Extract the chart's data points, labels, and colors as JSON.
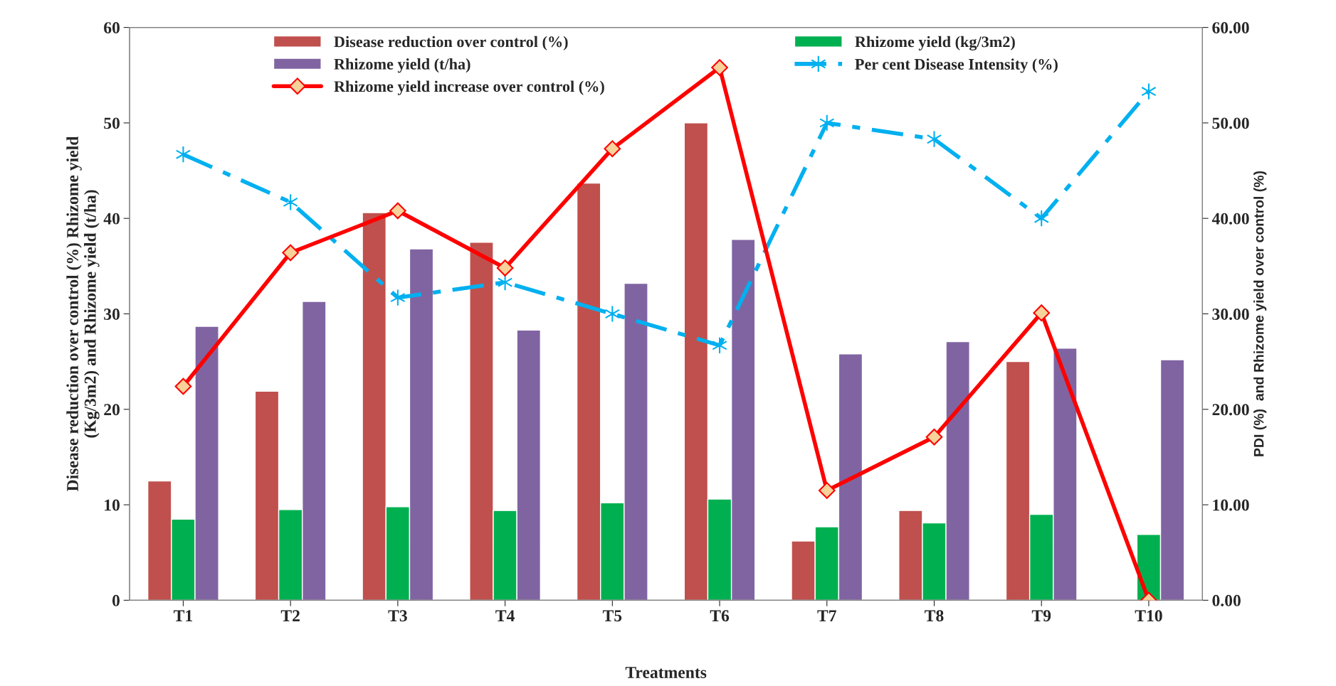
{
  "chart_data": {
    "type": "bar",
    "xlabel": "Treatments",
    "ylabel": "Disease reduction over control (%) Rhizome yield\n(Kg/3m2) and Rhizome yield (t/ha)",
    "y2label": "PDI (%)  and Rhizome yield over control (%)",
    "categories": [
      "T1",
      "T2",
      "T3",
      "T4",
      "T5",
      "T6",
      "T7",
      "T8",
      "T9",
      "T10"
    ],
    "ylim": [
      0,
      60
    ],
    "yticks": [
      0,
      10,
      20,
      30,
      40,
      50,
      60
    ],
    "y2lim": [
      0,
      60
    ],
    "y2ticks": [
      {
        "value": 0,
        "label": "0.00"
      },
      {
        "value": 10,
        "label": "10.00"
      },
      {
        "value": 20,
        "label": "20.00"
      },
      {
        "value": 30,
        "label": "30.00"
      },
      {
        "value": 40,
        "label": "40.00"
      },
      {
        "value": 50,
        "label": "50.00"
      },
      {
        "value": 60,
        "label": "60.00"
      }
    ],
    "legend": "top",
    "grid": false,
    "series": [
      {
        "name": "Disease reduction over control (%)",
        "color": "#c0504d",
        "values": [
          12.5,
          21.9,
          40.6,
          37.5,
          43.7,
          50.0,
          6.2,
          9.4,
          25.0,
          null
        ]
      },
      {
        "name": "Rhizome yield (kg/3m2)",
        "color": "#00b050",
        "values": [
          8.5,
          9.5,
          9.8,
          9.4,
          10.2,
          10.6,
          7.7,
          8.1,
          9.0,
          6.9
        ]
      },
      {
        "name": "Rhizome yield (t/ha)",
        "color": "#8064a2",
        "values": [
          28.7,
          31.3,
          36.8,
          28.3,
          33.2,
          37.8,
          25.8,
          27.1,
          26.4,
          25.2
        ]
      },
      {
        "name": "Per cent Disease Intensity (%)",
        "type": "line",
        "axis": "y2",
        "color": "#00b0f0",
        "marker": "cross",
        "line_style": "dashed",
        "values": [
          46.7,
          41.7,
          31.7,
          33.3,
          30.0,
          26.7,
          50.0,
          48.3,
          40.0,
          53.3
        ]
      },
      {
        "name": "Rhizome yield increase over control (%)",
        "type": "line",
        "axis": "y2",
        "color": "#ff0000",
        "marker": "diamond",
        "line_style": "solid",
        "values": [
          22.4,
          36.4,
          40.8,
          34.8,
          47.3,
          55.8,
          11.5,
          17.1,
          30.1,
          0
        ]
      }
    ]
  }
}
